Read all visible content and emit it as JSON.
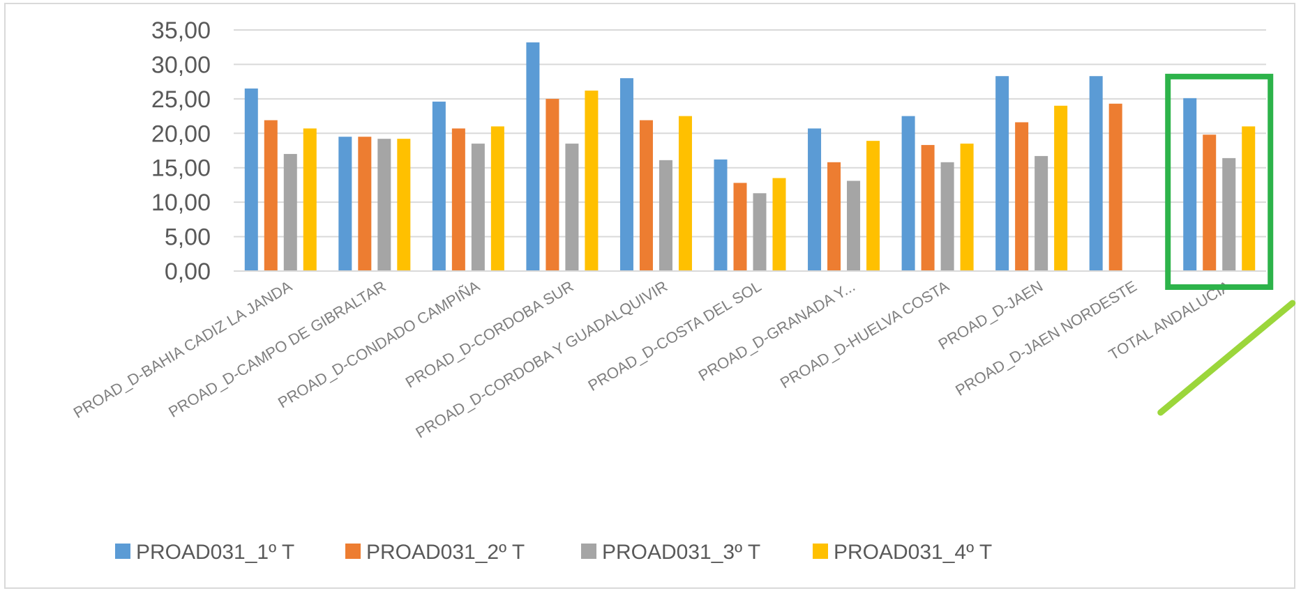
{
  "chart_data": {
    "type": "bar",
    "ylim": [
      0,
      35
    ],
    "yticks": [
      "0,00",
      "5,00",
      "10,00",
      "15,00",
      "20,00",
      "25,00",
      "30,00",
      "35,00"
    ],
    "grid": true,
    "legend_position": "bottom",
    "categories": [
      "PROAD_D-BAHIA CADIZ LA JANDA",
      "PROAD_D-CAMPO DE GIBRALTAR",
      "PROAD_D-CONDADO CAMPIÑA",
      "PROAD_D-CORDOBA SUR",
      "PROAD_D-CORDOBA Y GUADALQUIVIR",
      "PROAD_D-COSTA DEL SOL",
      "PROAD_D-GRANADA Y...",
      "PROAD_D-HUELVA COSTA",
      "PROAD_D-JAEN",
      "PROAD_D-JAEN NORDESTE",
      "TOTAL ANDALUCIA"
    ],
    "series": [
      {
        "name": "PROAD031_1º T",
        "color": "#5b9bd5",
        "values": [
          26.5,
          19.5,
          24.6,
          33.2,
          28.0,
          16.2,
          20.7,
          22.5,
          28.3,
          28.3,
          25.1
        ]
      },
      {
        "name": "PROAD031_2º T",
        "color": "#ed7d31",
        "values": [
          21.9,
          19.5,
          20.7,
          25.0,
          21.9,
          12.8,
          15.8,
          18.3,
          21.6,
          24.3,
          19.8
        ]
      },
      {
        "name": "PROAD031_3º T",
        "color": "#a5a5a5",
        "values": [
          17.0,
          19.2,
          18.5,
          18.5,
          16.1,
          11.3,
          13.1,
          15.8,
          16.7,
          null,
          16.4
        ]
      },
      {
        "name": "PROAD031_4º T",
        "color": "#ffc000",
        "values": [
          20.7,
          19.2,
          21.0,
          26.2,
          22.5,
          13.5,
          18.9,
          18.5,
          24.0,
          null,
          21.0
        ]
      }
    ],
    "highlight": {
      "category": "TOTAL ANDALUCIA",
      "box_color": "#2db34a",
      "underline_color": "#9bd63b"
    }
  }
}
